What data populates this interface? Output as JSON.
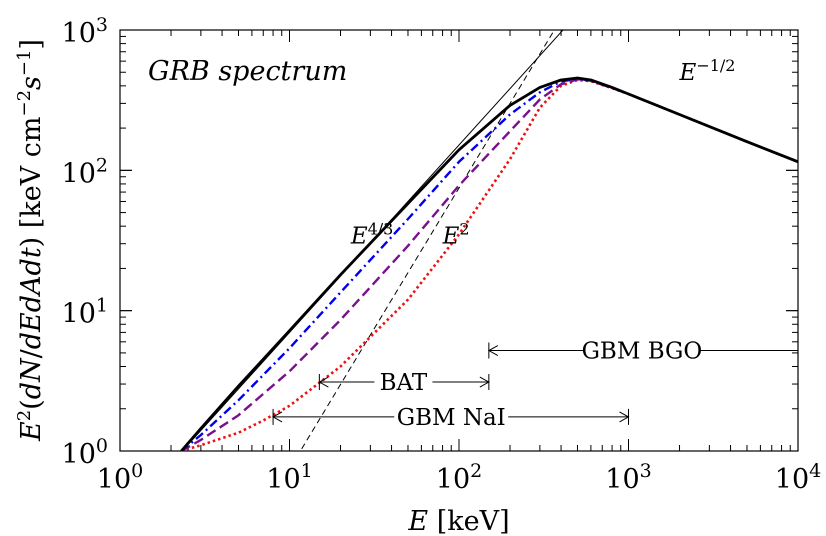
{
  "chart_data": {
    "type": "line",
    "title": "GRB spectrum",
    "xlabel": "E [keV]",
    "ylabel": "E²(dN/dEdAdt) [keV cm⁻²s⁻¹]",
    "xscale": "log",
    "yscale": "log",
    "xlim": [
      1,
      10000
    ],
    "ylim": [
      1,
      1000
    ],
    "x_ticks": [
      {
        "value": 1,
        "base": "10",
        "exp": "0"
      },
      {
        "value": 10,
        "base": "10",
        "exp": "1"
      },
      {
        "value": 100,
        "base": "10",
        "exp": "2"
      },
      {
        "value": 1000,
        "base": "10",
        "exp": "3"
      },
      {
        "value": 10000,
        "base": "10",
        "exp": "4"
      }
    ],
    "y_ticks": [
      {
        "value": 1,
        "base": "10",
        "exp": "0"
      },
      {
        "value": 10,
        "base": "10",
        "exp": "1"
      },
      {
        "value": 100,
        "base": "10",
        "exp": "2"
      },
      {
        "value": 1000,
        "base": "10",
        "exp": "3"
      }
    ],
    "series": [
      {
        "style": "solid-black-thick",
        "color": "#000000",
        "x": [
          2.3,
          3,
          5,
          10,
          20,
          50,
          100,
          200,
          300,
          400,
          500,
          600,
          800,
          1000,
          2000,
          5000,
          10000
        ],
        "y": [
          1.0,
          1.45,
          2.9,
          7.2,
          18,
          58,
          140,
          290,
          390,
          440,
          455,
          440,
          390,
          350,
          250,
          160,
          115
        ]
      },
      {
        "style": "dash-dot",
        "color": "#0000ee",
        "x": [
          2.3,
          3,
          5,
          10,
          20,
          50,
          100,
          200,
          300,
          400,
          500,
          600,
          800,
          1000,
          2000,
          5000,
          10000
        ],
        "y": [
          1.0,
          1.3,
          2.3,
          5.4,
          13.5,
          45,
          115,
          250,
          360,
          430,
          450,
          437,
          388,
          350,
          250,
          160,
          115
        ]
      },
      {
        "style": "dashed",
        "color": "#7a1090",
        "x": [
          2.3,
          3,
          5,
          10,
          20,
          50,
          100,
          200,
          300,
          400,
          500,
          600,
          800,
          1000,
          2000,
          5000,
          10000
        ],
        "y": [
          1.0,
          1.2,
          1.8,
          3.7,
          8.6,
          29,
          78,
          190,
          320,
          410,
          445,
          435,
          386,
          350,
          250,
          160,
          115
        ]
      },
      {
        "style": "dotted",
        "color": "#ee1111",
        "x": [
          2.3,
          3,
          5,
          7,
          10,
          20,
          50,
          100,
          200,
          300,
          400,
          500,
          600,
          800,
          1000,
          2000,
          5000,
          10000
        ],
        "y": [
          1.0,
          1.1,
          1.35,
          1.65,
          2.1,
          4.0,
          12,
          35,
          120,
          280,
          400,
          440,
          432,
          385,
          350,
          250,
          160,
          115
        ]
      }
    ],
    "asymptotes": [
      {
        "label_base": "E",
        "label_exp": "4/3",
        "style": "thin-solid",
        "x": [
          2.1,
          500
        ],
        "y": [
          0.87,
          1300
        ],
        "label_x": 23,
        "label_y": 30
      },
      {
        "label_base": "E",
        "label_exp": "2",
        "style": "thin-dashed",
        "x": [
          11,
          400
        ],
        "y": [
          0.9,
          1200
        ],
        "label_x": 80,
        "label_y": 30
      },
      {
        "label_base": "E",
        "label_exp": "−1/2",
        "style": "none",
        "label_x": 2000,
        "label_y": 440
      }
    ],
    "energy_ranges": [
      {
        "label": "GBM BGO",
        "x_min": 150,
        "x_max": 10000,
        "y": 5.2,
        "label_x": 1200
      },
      {
        "label": "BAT",
        "x_min": 15,
        "x_max": 150,
        "y": 3.1,
        "label_x": 47
      },
      {
        "label": "GBM NaI",
        "x_min": 8,
        "x_max": 1000,
        "y": 1.75,
        "label_x": 90
      }
    ]
  }
}
